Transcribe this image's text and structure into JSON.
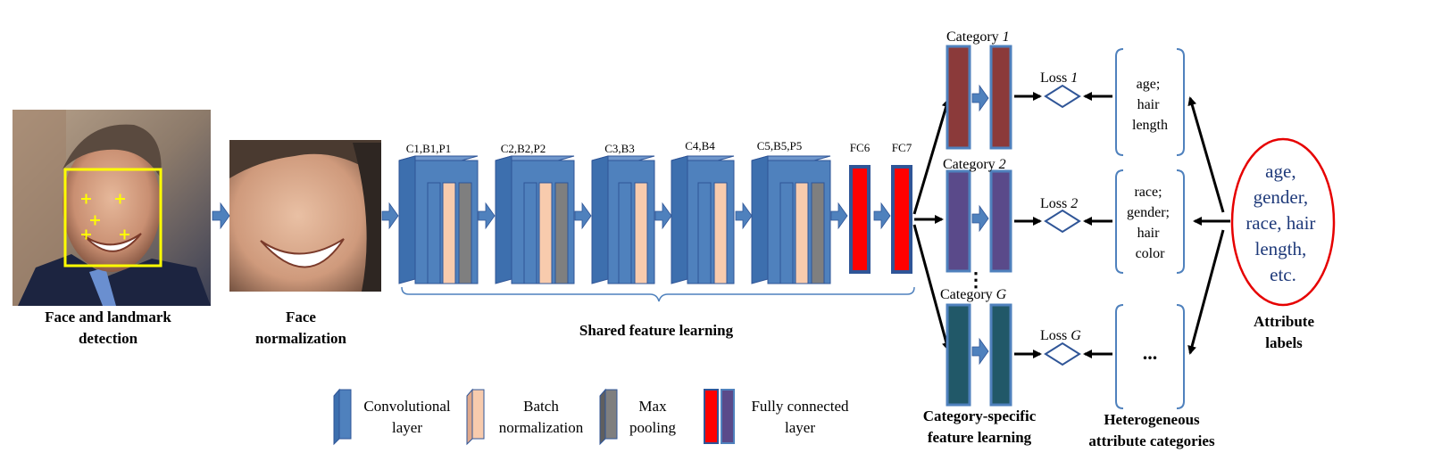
{
  "stages": {
    "face_detection": {
      "line1": "Face and landmark",
      "line2": "detection"
    },
    "face_normalization": {
      "line1": "Face",
      "line2": "normalization"
    },
    "shared_learning": "Shared feature learning",
    "category_specific": {
      "line1": "Category-specific",
      "line2": "feature learning"
    },
    "heterogeneous": {
      "line1": "Heterogeneous",
      "line2": "attribute categories"
    },
    "attribute_labels": {
      "line1": "Attribute",
      "line2": "labels"
    }
  },
  "layers": [
    {
      "label": "C1,B1,P1"
    },
    {
      "label": "C2,B2,P2"
    },
    {
      "label": "C3,B3"
    },
    {
      "label": "C4,B4"
    },
    {
      "label": "C5,B5,P5"
    },
    {
      "label": "FC6"
    },
    {
      "label": "FC7"
    }
  ],
  "categories": [
    {
      "label": "Category",
      "index": "1",
      "loss": "Loss",
      "loss_index": "1",
      "attributes": [
        "age;",
        "hair",
        "length"
      ]
    },
    {
      "label": "Category",
      "index": "2",
      "loss": "Loss",
      "loss_index": "2",
      "attributes": [
        "race;",
        "gender;",
        "hair",
        "color"
      ]
    },
    {
      "label": "Category",
      "index": "G",
      "loss": "Loss",
      "loss_index": "G",
      "attributes": [
        "..."
      ]
    }
  ],
  "vertical_dots": "⋮",
  "attribute_labels_ellipse": [
    "age,",
    "gender,",
    "race, hair",
    "length,",
    "etc."
  ],
  "legend": [
    {
      "line1": "Convolutional",
      "line2": "layer"
    },
    {
      "line1": "Batch",
      "line2": "normalization"
    },
    {
      "line1": "Max",
      "line2": "pooling"
    },
    {
      "line1": "Fully connected",
      "line2": "layer"
    }
  ],
  "colors": {
    "conv": "#4f81bd",
    "conv_dark": "#2f5597",
    "batch_norm": "#f8cbad",
    "max_pool": "#7f7f7f",
    "fc": "#ff0000",
    "cat1": "#8b3a3a",
    "cat2": "#5a4a8a",
    "catG": "#215868",
    "arrow_block": "#4f81bd",
    "bracket": "#4f81bd",
    "ellipse": "#e60000",
    "ellipse_text": "#1f3a7a",
    "landmark_box": "#ffff00"
  }
}
